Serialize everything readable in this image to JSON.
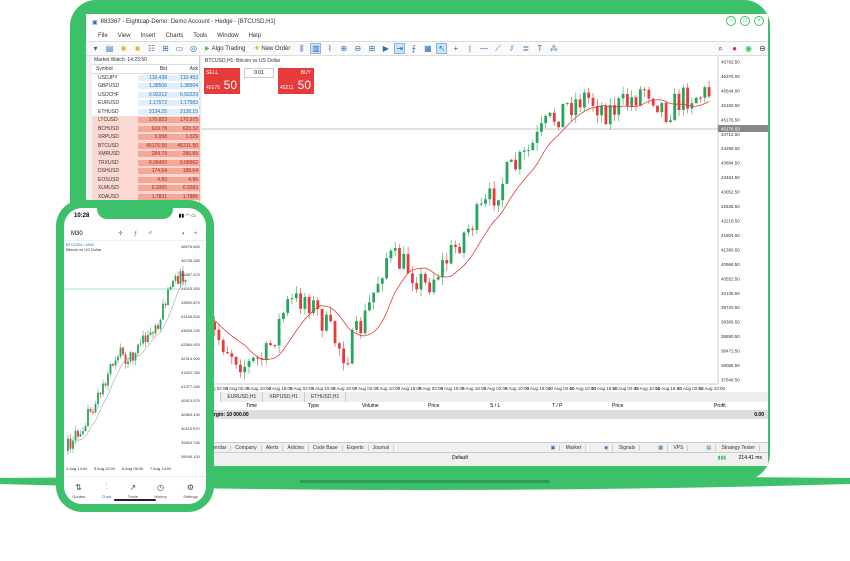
{
  "window": {
    "title": "883367 - Eightcap-Demo: Demo Account - Hedge - [BTCUSD,H1]"
  },
  "menu": [
    "File",
    "View",
    "Insert",
    "Charts",
    "Tools",
    "Window",
    "Help"
  ],
  "toolbar": {
    "algo_trading": "Algo Trading",
    "new_order": "New Order"
  },
  "market_watch": {
    "title": "Market Watch: 14:23:50",
    "headers": [
      "Symbol",
      "Bid",
      "Ask"
    ],
    "rows": [
      {
        "symbol": "USDJPY",
        "bid": "110.438",
        "ask": "110.453",
        "style": "blue"
      },
      {
        "symbol": "GBPUSD",
        "bid": "1.38506",
        "ask": "1.38504",
        "style": "blue"
      },
      {
        "symbol": "USDCHF",
        "bid": "0.92212",
        "ask": "0.92223",
        "style": "blue"
      },
      {
        "symbol": "EURUSD",
        "bid": "1.17572",
        "ask": "1.17583",
        "style": "blue"
      },
      {
        "symbol": "ETHUSD",
        "bid": "3134.25",
        "ask": "3138.15",
        "style": "blue"
      },
      {
        "symbol": "LTCUSD",
        "bid": "170.823",
        "ask": "170.975",
        "style": "red"
      },
      {
        "symbol": "BCHUSD",
        "bid": "619.78",
        "ask": "620.32",
        "style": "red"
      },
      {
        "symbol": "XRPUSD",
        "bid": "0.998",
        "ask": "1.029",
        "style": "red"
      },
      {
        "symbol": "BTCUSD",
        "bid": "45176.50",
        "ask": "45211.50",
        "style": "red"
      },
      {
        "symbol": "XMRUSD",
        "bid": "284.79",
        "ask": "286.89",
        "style": "red"
      },
      {
        "symbol": "TRXUSD",
        "bid": "0.08450",
        "ask": "0.08662",
        "style": "red"
      },
      {
        "symbol": "DSHUSD",
        "bid": "174.54",
        "ask": "188.64",
        "style": "red"
      },
      {
        "symbol": "EOSUSD",
        "bid": "4.83",
        "ask": "4.96",
        "style": "red"
      },
      {
        "symbol": "XLMUSD",
        "bid": "0.3365",
        "ask": "0.3383",
        "style": "red"
      },
      {
        "symbol": "XDAUSD",
        "bid": "1.7831",
        "ask": "1.7886",
        "style": "red"
      }
    ]
  },
  "chart": {
    "header": "BTCUSD,H1: Bitcoin vs US Dollar",
    "sell_label": "SELL",
    "buy_label": "BUY",
    "lot": "0.01",
    "sell_small": "45176",
    "sell_big": "50",
    "buy_small": "45211",
    "buy_big": "50",
    "price_labels": [
      "46792.50",
      "46375.00",
      "46544.00",
      "46160.50",
      "45176.50",
      "44712.50",
      "44298.50",
      "43884.50",
      "43464.50",
      "43052.50",
      "42638.50",
      "42218.50",
      "41804.50",
      "41390.50",
      "40968.50",
      "40552.50",
      "40138.50",
      "39720.50",
      "39306.50",
      "38890.50",
      "38472.50",
      "38056.50",
      "37640.50"
    ],
    "time_labels": [
      "6 Aug 02:00",
      "5 Aug 02:00",
      "5 Aug 10:00",
      "5 Aug 18:00",
      "6 Aug 02:00",
      "6 Aug 10:00",
      "6 Aug 18:00",
      "7 Aug 02:00",
      "7 Aug 10:00",
      "7 Aug 18:00",
      "8 Aug 02:00",
      "8 Aug 10:00",
      "8 Aug 18:00",
      "9 Aug 02:00",
      "9 Aug 10:00",
      "9 Aug 18:00",
      "10 Aug 02:00",
      "10 Aug 10:00",
      "10 Aug 18:00",
      "11 Aug 02:00",
      "11 Aug 10:00",
      "11 Aug 18:00",
      "12 Aug 02:00",
      "12 Aug 10:00"
    ],
    "tabs": [
      "EURUSD,H1",
      "XRPUSD,H1",
      "ETHUSD,H1"
    ]
  },
  "terminal": {
    "columns": [
      "Time",
      "Type",
      "Volume",
      "Price",
      "S / L",
      "T / P",
      "Price",
      "Profit"
    ],
    "margin_label": "Margin: 10 000.00",
    "margin_value": "0.00",
    "tabs": [
      "Calendar",
      "Company",
      "Alerts",
      "Articles",
      "Code Base",
      "Experts",
      "Journal"
    ],
    "right_tabs": [
      "Market",
      "Signals",
      "VPS",
      "Strategy Tester"
    ],
    "status_default": "Default",
    "status_ping": "214.41 ms"
  },
  "phone": {
    "time": "10:28",
    "timeframe": "M30",
    "symbol": "BTCUSD • M30",
    "description": "Bitcoin vs US Dollar",
    "price_labels": [
      "46576.800",
      "45735.260",
      "44867.670",
      "44003.300",
      "43592.870",
      "43155.830",
      "43005.230",
      "42584.920",
      "42314.000",
      "41822.760",
      "41377.150",
      "40913.570",
      "40563.430",
      "40115.970",
      "39604.740",
      "39040.100"
    ],
    "time_labels": [
      "4 Aug 14:00",
      "5 Aug 22:00",
      "6 Aug 06:00",
      "7 Aug 14:00"
    ],
    "nav": [
      "Quotes",
      "Chart",
      "Trade",
      "History",
      "Settings"
    ]
  }
}
